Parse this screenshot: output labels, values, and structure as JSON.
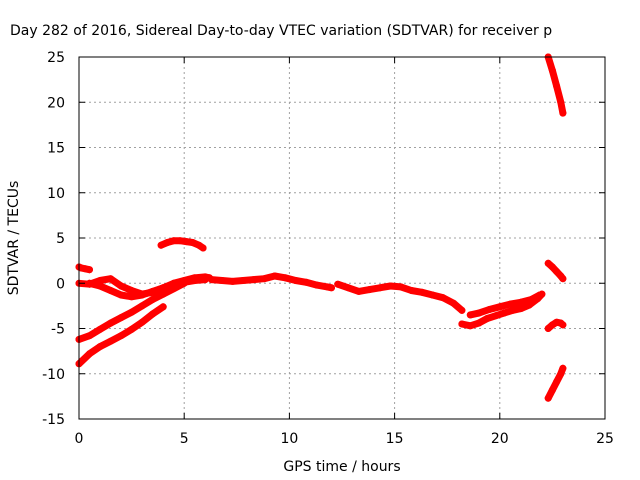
{
  "chart_data": {
    "type": "scatter",
    "title": "Day 282 of 2016, Sidereal Day-to-day VTEC variation (SDTVAR) for receiver p",
    "xlabel": "GPS time / hours",
    "ylabel": "SDTVAR / TECUs",
    "xlim": [
      0,
      25
    ],
    "ylim": [
      -15,
      25
    ],
    "x_ticks": [
      0,
      5,
      10,
      15,
      20,
      25
    ],
    "y_ticks": [
      -15,
      -10,
      -5,
      0,
      5,
      10,
      15,
      20,
      25
    ],
    "x_tick_labels": [
      "0",
      "5",
      "10",
      "15",
      "20",
      "25"
    ],
    "y_tick_labels": [
      "-15",
      "-10",
      "-5",
      "0",
      "5",
      "10",
      "15",
      "20",
      "25"
    ],
    "grid": true,
    "marker_color": "#ff0000",
    "series": [
      {
        "x": [
          0.0,
          0.1,
          0.3,
          0.5
        ],
        "y": [
          1.8,
          1.7,
          1.6,
          1.5
        ]
      },
      {
        "x": [
          0.0,
          0.5,
          1.0,
          1.5,
          2.0,
          2.5,
          3.0,
          3.5,
          4.0,
          4.5,
          5.0,
          5.5,
          6.0,
          6.2
        ],
        "y": [
          0.0,
          -0.1,
          0.3,
          0.5,
          -0.3,
          -0.8,
          -1.2,
          -1.0,
          -0.5,
          0.0,
          0.3,
          0.6,
          0.7,
          0.6
        ]
      },
      {
        "x": [
          0.5,
          1.0,
          1.5,
          2.0,
          2.5,
          3.0,
          3.5,
          4.0,
          4.5,
          5.0,
          5.5,
          6.0
        ],
        "y": [
          0.0,
          -0.3,
          -0.8,
          -1.3,
          -1.5,
          -1.3,
          -0.9,
          -0.5,
          -0.1,
          0.1,
          0.3,
          0.4
        ]
      },
      {
        "x": [
          0.0,
          0.5,
          1.0,
          1.5,
          2.0,
          2.5,
          3.0,
          3.5,
          4.0,
          4.5,
          5.0
        ],
        "y": [
          -6.2,
          -5.8,
          -5.1,
          -4.4,
          -3.8,
          -3.2,
          -2.5,
          -1.8,
          -1.2,
          -0.6,
          0.0
        ]
      },
      {
        "x": [
          0.0,
          0.5,
          1.0,
          1.5,
          2.0,
          2.5,
          3.0,
          3.5,
          4.0
        ],
        "y": [
          -8.9,
          -7.8,
          -7.0,
          -6.4,
          -5.8,
          -5.1,
          -4.3,
          -3.4,
          -2.6
        ]
      },
      {
        "x": [
          3.9,
          4.2,
          4.5,
          4.8,
          5.1,
          5.4,
          5.7,
          5.9
        ],
        "y": [
          4.2,
          4.5,
          4.7,
          4.7,
          4.6,
          4.5,
          4.2,
          3.9
        ]
      },
      {
        "x": [
          6.3,
          6.8,
          7.3,
          7.8,
          8.3,
          8.8,
          9.3,
          9.8,
          10.3,
          10.8,
          11.3,
          11.8,
          12.0
        ],
        "y": [
          0.4,
          0.3,
          0.2,
          0.3,
          0.4,
          0.5,
          0.8,
          0.6,
          0.3,
          0.1,
          -0.2,
          -0.4,
          -0.5
        ]
      },
      {
        "x": [
          12.3,
          12.8,
          13.3,
          13.8,
          14.3,
          14.8,
          15.3,
          15.8,
          16.3,
          16.8,
          17.3,
          17.8,
          18.2
        ],
        "y": [
          -0.1,
          -0.5,
          -0.9,
          -0.7,
          -0.5,
          -0.3,
          -0.4,
          -0.8,
          -1.0,
          -1.3,
          -1.6,
          -2.2,
          -3.0
        ]
      },
      {
        "x": [
          18.2,
          18.6,
          19.0,
          19.4,
          19.8,
          20.2,
          20.6,
          21.0,
          21.4,
          21.8,
          22.0
        ],
        "y": [
          -4.5,
          -4.7,
          -4.4,
          -3.9,
          -3.6,
          -3.3,
          -3.0,
          -2.8,
          -2.4,
          -1.7,
          -1.2
        ]
      },
      {
        "x": [
          18.6,
          19.0,
          19.5,
          20.0,
          20.5,
          21.0,
          21.5,
          21.9
        ],
        "y": [
          -3.5,
          -3.3,
          -2.9,
          -2.6,
          -2.3,
          -2.1,
          -1.8,
          -1.3
        ]
      },
      {
        "x": [
          22.3,
          22.5,
          22.7,
          22.9,
          23.0
        ],
        "y": [
          25.0,
          23.5,
          21.8,
          20.0,
          18.8
        ]
      },
      {
        "x": [
          22.3,
          22.5,
          22.7,
          22.9,
          23.0
        ],
        "y": [
          2.2,
          1.8,
          1.3,
          0.8,
          0.5
        ]
      },
      {
        "x": [
          22.3,
          22.5,
          22.7,
          22.9,
          23.0
        ],
        "y": [
          -5.0,
          -4.6,
          -4.3,
          -4.4,
          -4.6
        ]
      },
      {
        "x": [
          22.3,
          22.5,
          22.7,
          22.9,
          23.0
        ],
        "y": [
          -12.7,
          -11.8,
          -10.9,
          -10.0,
          -9.4
        ]
      }
    ]
  }
}
